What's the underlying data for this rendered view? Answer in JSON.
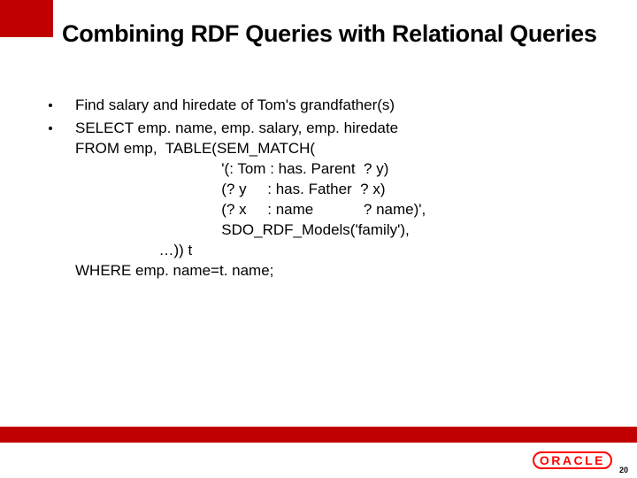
{
  "red_block": {
    "bg": "#c00000",
    "width": 60,
    "height": 42
  },
  "title": "Combining RDF Queries with Relational Queries",
  "bullets": {
    "item0": "Find salary and hiredate of Tom's grandfather(s)",
    "item1_line0": "SELECT emp. name, emp. salary, emp. hiredate",
    "item1_line1": "FROM emp,  TABLE(SEM_MATCH(",
    "item1_line2": "                                   '(: Tom : has. Parent  ? y)",
    "item1_line3": "                                   (? y     : has. Father  ? x)",
    "item1_line4": "                                   (? x     : name            ? name)',",
    "item1_line5": "                                   SDO_RDF_Models('family'),",
    "item1_line6": "                    …)) t",
    "item1_line7": "WHERE emp. name=t. name;"
  },
  "footer": {
    "bar_color": "#c00000",
    "logo_text": "ORACLE",
    "logo_color": "#ff0000",
    "page_number": "20"
  }
}
